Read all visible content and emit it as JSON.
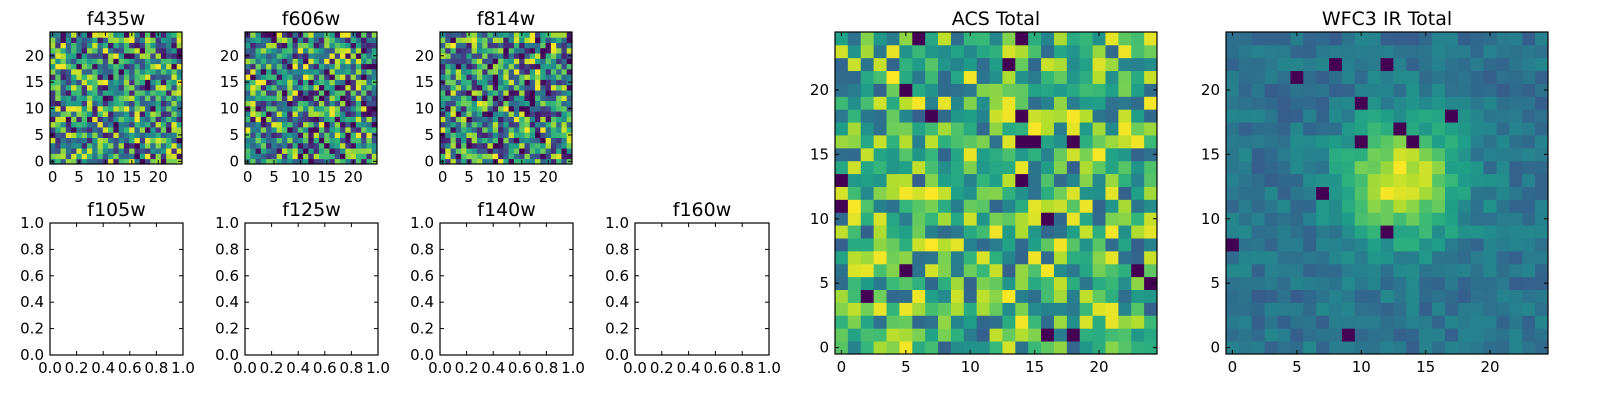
{
  "chart_data": [
    {
      "type": "heatmap",
      "title": "f435w",
      "colormap": "viridis",
      "grid_size": 25,
      "xlim": [
        -0.5,
        24.5
      ],
      "ylim": [
        -0.5,
        24.5
      ],
      "xticks": [
        0,
        5,
        10,
        15,
        20
      ],
      "yticks": [
        0,
        5,
        10,
        15,
        20
      ],
      "seed": 435,
      "value_range": [
        0,
        1
      ]
    },
    {
      "type": "heatmap",
      "title": "f606w",
      "colormap": "viridis",
      "grid_size": 25,
      "xlim": [
        -0.5,
        24.5
      ],
      "ylim": [
        -0.5,
        24.5
      ],
      "xticks": [
        0,
        5,
        10,
        15,
        20
      ],
      "yticks": [
        0,
        5,
        10,
        15,
        20
      ],
      "seed": 606,
      "value_range": [
        0,
        1
      ]
    },
    {
      "type": "heatmap",
      "title": "f814w",
      "colormap": "viridis",
      "grid_size": 25,
      "xlim": [
        -0.5,
        24.5
      ],
      "ylim": [
        -0.5,
        24.5
      ],
      "xticks": [
        0,
        5,
        10,
        15,
        20
      ],
      "yticks": [
        0,
        5,
        10,
        15,
        20
      ],
      "seed": 814,
      "value_range": [
        0,
        1
      ]
    },
    {
      "type": "empty",
      "title": "f105w",
      "xlim": [
        0,
        1
      ],
      "ylim": [
        0,
        1
      ],
      "xticks": [
        "0.0",
        "0.2",
        "0.4",
        "0.6",
        "0.8",
        "1.0"
      ],
      "yticks": [
        "0.0",
        "0.2",
        "0.4",
        "0.6",
        "0.8",
        "1.0"
      ]
    },
    {
      "type": "empty",
      "title": "f125w",
      "xlim": [
        0,
        1
      ],
      "ylim": [
        0,
        1
      ],
      "xticks": [
        "0.0",
        "0.2",
        "0.4",
        "0.6",
        "0.8",
        "1.0"
      ],
      "yticks": [
        "0.0",
        "0.2",
        "0.4",
        "0.6",
        "0.8",
        "1.0"
      ]
    },
    {
      "type": "empty",
      "title": "f140w",
      "xlim": [
        0,
        1
      ],
      "ylim": [
        0,
        1
      ],
      "xticks": [
        "0.0",
        "0.2",
        "0.4",
        "0.6",
        "0.8",
        "1.0"
      ],
      "yticks": [
        "0.0",
        "0.2",
        "0.4",
        "0.6",
        "0.8",
        "1.0"
      ]
    },
    {
      "type": "empty",
      "title": "f160w",
      "xlim": [
        0,
        1
      ],
      "ylim": [
        0,
        1
      ],
      "xticks": [
        "0.0",
        "0.2",
        "0.4",
        "0.6",
        "0.8",
        "1.0"
      ],
      "yticks": [
        "0.0",
        "0.2",
        "0.4",
        "0.6",
        "0.8",
        "1.0"
      ]
    },
    {
      "type": "heatmap",
      "title": "ACS Total",
      "colormap": "viridis",
      "grid_size": 25,
      "xlim": [
        -0.5,
        24.5
      ],
      "ylim": [
        -0.5,
        24.5
      ],
      "xticks": [
        0,
        5,
        10,
        15,
        20
      ],
      "yticks": [
        0,
        5,
        10,
        15,
        20
      ],
      "seed": 1001,
      "value_range": [
        0.3,
        1
      ]
    },
    {
      "type": "heatmap",
      "title": "WFC3 IR Total",
      "colormap": "viridis",
      "grid_size": 25,
      "xlim": [
        -0.5,
        24.5
      ],
      "ylim": [
        -0.5,
        24.5
      ],
      "xticks": [
        0,
        5,
        10,
        15,
        20
      ],
      "yticks": [
        0,
        5,
        10,
        15,
        20
      ],
      "seed": 2002,
      "value_range": [
        0.1,
        1
      ],
      "blob_center": [
        13,
        13
      ],
      "blob_sigma": 3.2
    }
  ]
}
